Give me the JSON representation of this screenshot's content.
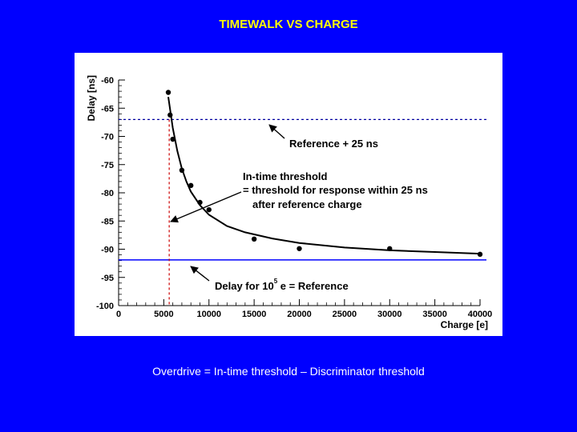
{
  "slide": {
    "title": "TIMEWALK VS CHARGE",
    "footer": "Overdrive = In-time threshold – Discriminator threshold"
  },
  "colors": {
    "background": "#0000ff",
    "title": "#ffff00",
    "reference_plus_25": "#0000a0",
    "reference": "#0000ff",
    "in_time_marker": "#cc0000"
  },
  "chart_data": {
    "type": "scatter",
    "xlabel": "Charge [e]",
    "ylabel": "Delay [ns]",
    "xlim": [
      0,
      40000
    ],
    "ylim": [
      -100,
      -60
    ],
    "x_ticks": [
      0,
      5000,
      10000,
      15000,
      20000,
      25000,
      30000,
      35000,
      40000
    ],
    "y_ticks": [
      -60,
      -65,
      -70,
      -75,
      -80,
      -85,
      -90,
      -95,
      -100
    ],
    "grid": false,
    "points": [
      {
        "x": 5500,
        "y": -62.2
      },
      {
        "x": 5700,
        "y": -66.2
      },
      {
        "x": 6000,
        "y": -70.5
      },
      {
        "x": 7000,
        "y": -76.0
      },
      {
        "x": 8000,
        "y": -78.7
      },
      {
        "x": 9000,
        "y": -81.7
      },
      {
        "x": 10000,
        "y": -83.0
      },
      {
        "x": 15000,
        "y": -88.2
      },
      {
        "x": 20000,
        "y": -89.9
      },
      {
        "x": 30000,
        "y": -89.9
      },
      {
        "x": 40000,
        "y": -90.9
      }
    ],
    "fit_curve": {
      "x": [
        5500,
        6000,
        6500,
        7000,
        7500,
        8000,
        9000,
        10000,
        12000,
        14000,
        17000,
        20000,
        25000,
        30000,
        35000,
        40000
      ],
      "y": [
        -63.0,
        -68.5,
        -72.6,
        -75.7,
        -78.0,
        -79.8,
        -82.2,
        -83.9,
        -85.9,
        -87.0,
        -88.1,
        -88.9,
        -89.7,
        -90.2,
        -90.5,
        -90.8
      ]
    },
    "reference_plus_25_y": -67.0,
    "reference_y": -91.9,
    "in_time_threshold_x": 5600,
    "annotations": [
      {
        "id": "ref-plus",
        "text": "Reference + 25 ns"
      },
      {
        "id": "in-time-1",
        "text": "In-time threshold"
      },
      {
        "id": "in-time-2",
        "text": "= threshold for response within 25 ns"
      },
      {
        "id": "in-time-3",
        "text": "after reference charge"
      },
      {
        "id": "delay-ref-a",
        "text": "Delay for 10"
      },
      {
        "id": "delay-ref-sup",
        "text": "5"
      },
      {
        "id": "delay-ref-b",
        "text": " e = Reference"
      }
    ]
  }
}
